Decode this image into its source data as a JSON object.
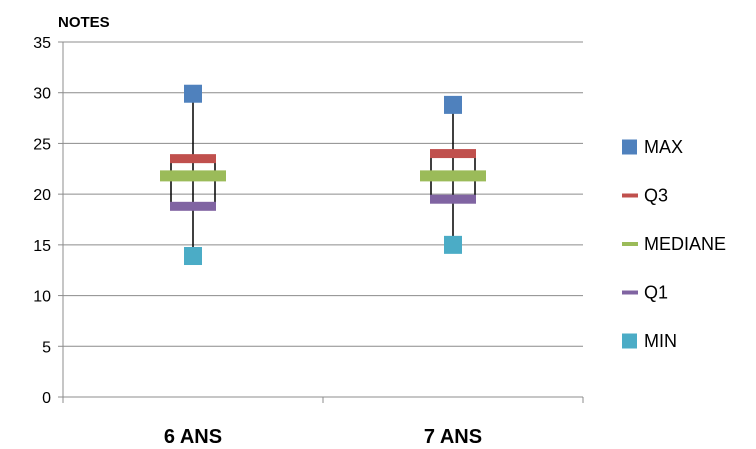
{
  "chart_data": {
    "type": "boxplot",
    "ylabel": "NOTES",
    "ylim": [
      0,
      35
    ],
    "yticks": [
      0,
      5,
      10,
      15,
      20,
      25,
      30,
      35
    ],
    "grid": true,
    "legend_position": "right",
    "categories": [
      "6 ANS",
      "7 ANS"
    ],
    "series": [
      {
        "name": "MAX",
        "color": "#4f81bd",
        "marker": "square",
        "values": [
          29.9,
          28.8
        ]
      },
      {
        "name": "Q3",
        "color": "#c0504d",
        "marker": "dash",
        "values": [
          23.5,
          24.0
        ]
      },
      {
        "name": "MEDIANE",
        "color": "#9bbb59",
        "marker": "dash",
        "values": [
          21.8,
          21.8
        ]
      },
      {
        "name": "Q1",
        "color": "#8064a2",
        "marker": "dash",
        "values": [
          18.8,
          19.5
        ]
      },
      {
        "name": "MIN",
        "color": "#4bacc6",
        "marker": "square",
        "values": [
          13.9,
          15.0
        ]
      }
    ]
  }
}
